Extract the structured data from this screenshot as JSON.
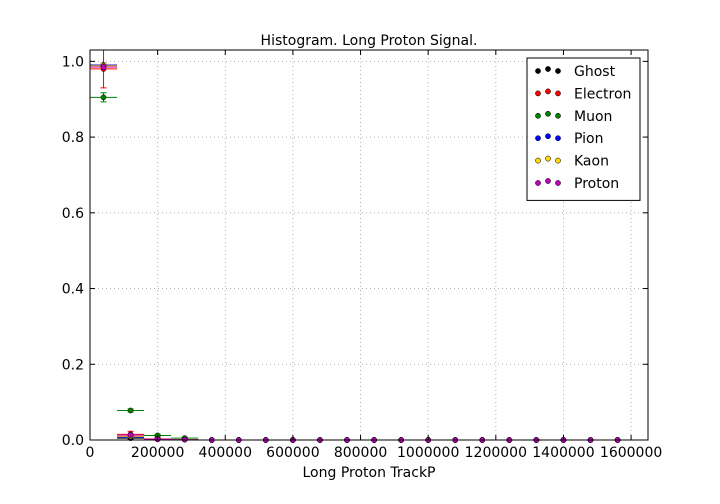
{
  "chart_data": {
    "type": "scatter",
    "title": "Histogram. Long Proton Signal.",
    "xlabel": "Long Proton TrackP",
    "ylabel": "",
    "xlim": [
      0,
      1650000
    ],
    "ylim": [
      0,
      1.03
    ],
    "x_ticks": [
      0,
      200000,
      400000,
      600000,
      800000,
      1000000,
      1200000,
      1400000,
      1600000
    ],
    "x_tick_labels": [
      "0",
      "200000",
      "400000",
      "600000",
      "800000",
      "1000000",
      "1200000",
      "1400000",
      "1600000"
    ],
    "y_ticks": [
      0.0,
      0.2,
      0.4,
      0.6,
      0.8,
      1.0
    ],
    "y_tick_labels": [
      "0.0",
      "0.2",
      "0.4",
      "0.6",
      "0.8",
      "1.0"
    ],
    "grid": true,
    "legend_position": "top-right",
    "bin_centers": [
      40000,
      120000,
      200000,
      280000,
      360000,
      440000,
      520000,
      600000,
      680000,
      760000,
      840000,
      920000,
      1000000,
      1080000,
      1160000,
      1240000,
      1320000,
      1400000,
      1480000,
      1560000
    ],
    "bin_half_width": 40000,
    "series": [
      {
        "name": "Ghost",
        "color": "#000000",
        "values": [
          0.99,
          0.005,
          0.002,
          0.001,
          0,
          0,
          0,
          0,
          0,
          0,
          0,
          0,
          0,
          0,
          0,
          0,
          0,
          0,
          0,
          0
        ],
        "yerr": [
          0.005,
          0.003,
          0.002,
          0.001,
          0,
          0,
          0,
          0,
          0,
          0,
          0,
          0,
          0,
          0,
          0,
          0,
          0,
          0,
          0,
          0
        ]
      },
      {
        "name": "Electron",
        "color": "#ff0000",
        "values": [
          0.98,
          0.015,
          0.003,
          0.001,
          0,
          0,
          0,
          0,
          0,
          0,
          0,
          0,
          0,
          0,
          0,
          0,
          0,
          0,
          0,
          0
        ],
        "yerr": [
          0.05,
          0.008,
          0.003,
          0.001,
          0,
          0,
          0,
          0,
          0,
          0,
          0,
          0,
          0,
          0,
          0,
          0,
          0,
          0,
          0,
          0
        ]
      },
      {
        "name": "Muon",
        "color": "#008000",
        "values": [
          0.905,
          0.078,
          0.012,
          0.005,
          0,
          0,
          0,
          0,
          0,
          0,
          0,
          0,
          0,
          0,
          0,
          0,
          0,
          0,
          0,
          0
        ],
        "yerr": [
          0.012,
          0.004,
          0.003,
          0.002,
          0,
          0,
          0,
          0,
          0,
          0,
          0,
          0,
          0,
          0,
          0,
          0,
          0,
          0,
          0,
          0
        ]
      },
      {
        "name": "Pion",
        "color": "#0000ff",
        "values": [
          0.99,
          0.008,
          0.002,
          0.001,
          0,
          0,
          0,
          0,
          0,
          0,
          0,
          0,
          0,
          0,
          0,
          0,
          0,
          0,
          0,
          0
        ],
        "yerr": [
          0.004,
          0.002,
          0.001,
          0.001,
          0,
          0,
          0,
          0,
          0,
          0,
          0,
          0,
          0,
          0,
          0,
          0,
          0,
          0,
          0,
          0
        ]
      },
      {
        "name": "Kaon",
        "color": "#ffd700",
        "values": [
          0.988,
          0.01,
          0.002,
          0.001,
          0,
          0,
          0,
          0,
          0,
          0,
          0,
          0,
          0,
          0,
          0,
          0,
          0,
          0,
          0,
          0
        ],
        "yerr": [
          0.006,
          0.003,
          0.001,
          0.001,
          0,
          0,
          0,
          0,
          0,
          0,
          0,
          0,
          0,
          0,
          0,
          0,
          0,
          0,
          0,
          0
        ]
      },
      {
        "name": "Proton",
        "color": "#bf00bf",
        "values": [
          0.985,
          0.013,
          0.002,
          0.001,
          0,
          0,
          0,
          0,
          0,
          0,
          0,
          0,
          0,
          0,
          0,
          0,
          0,
          0,
          0,
          0
        ],
        "yerr": [
          0.006,
          0.003,
          0.001,
          0.001,
          0,
          0,
          0,
          0,
          0,
          0,
          0,
          0,
          0,
          0,
          0,
          0,
          0,
          0,
          0,
          0
        ]
      }
    ]
  }
}
